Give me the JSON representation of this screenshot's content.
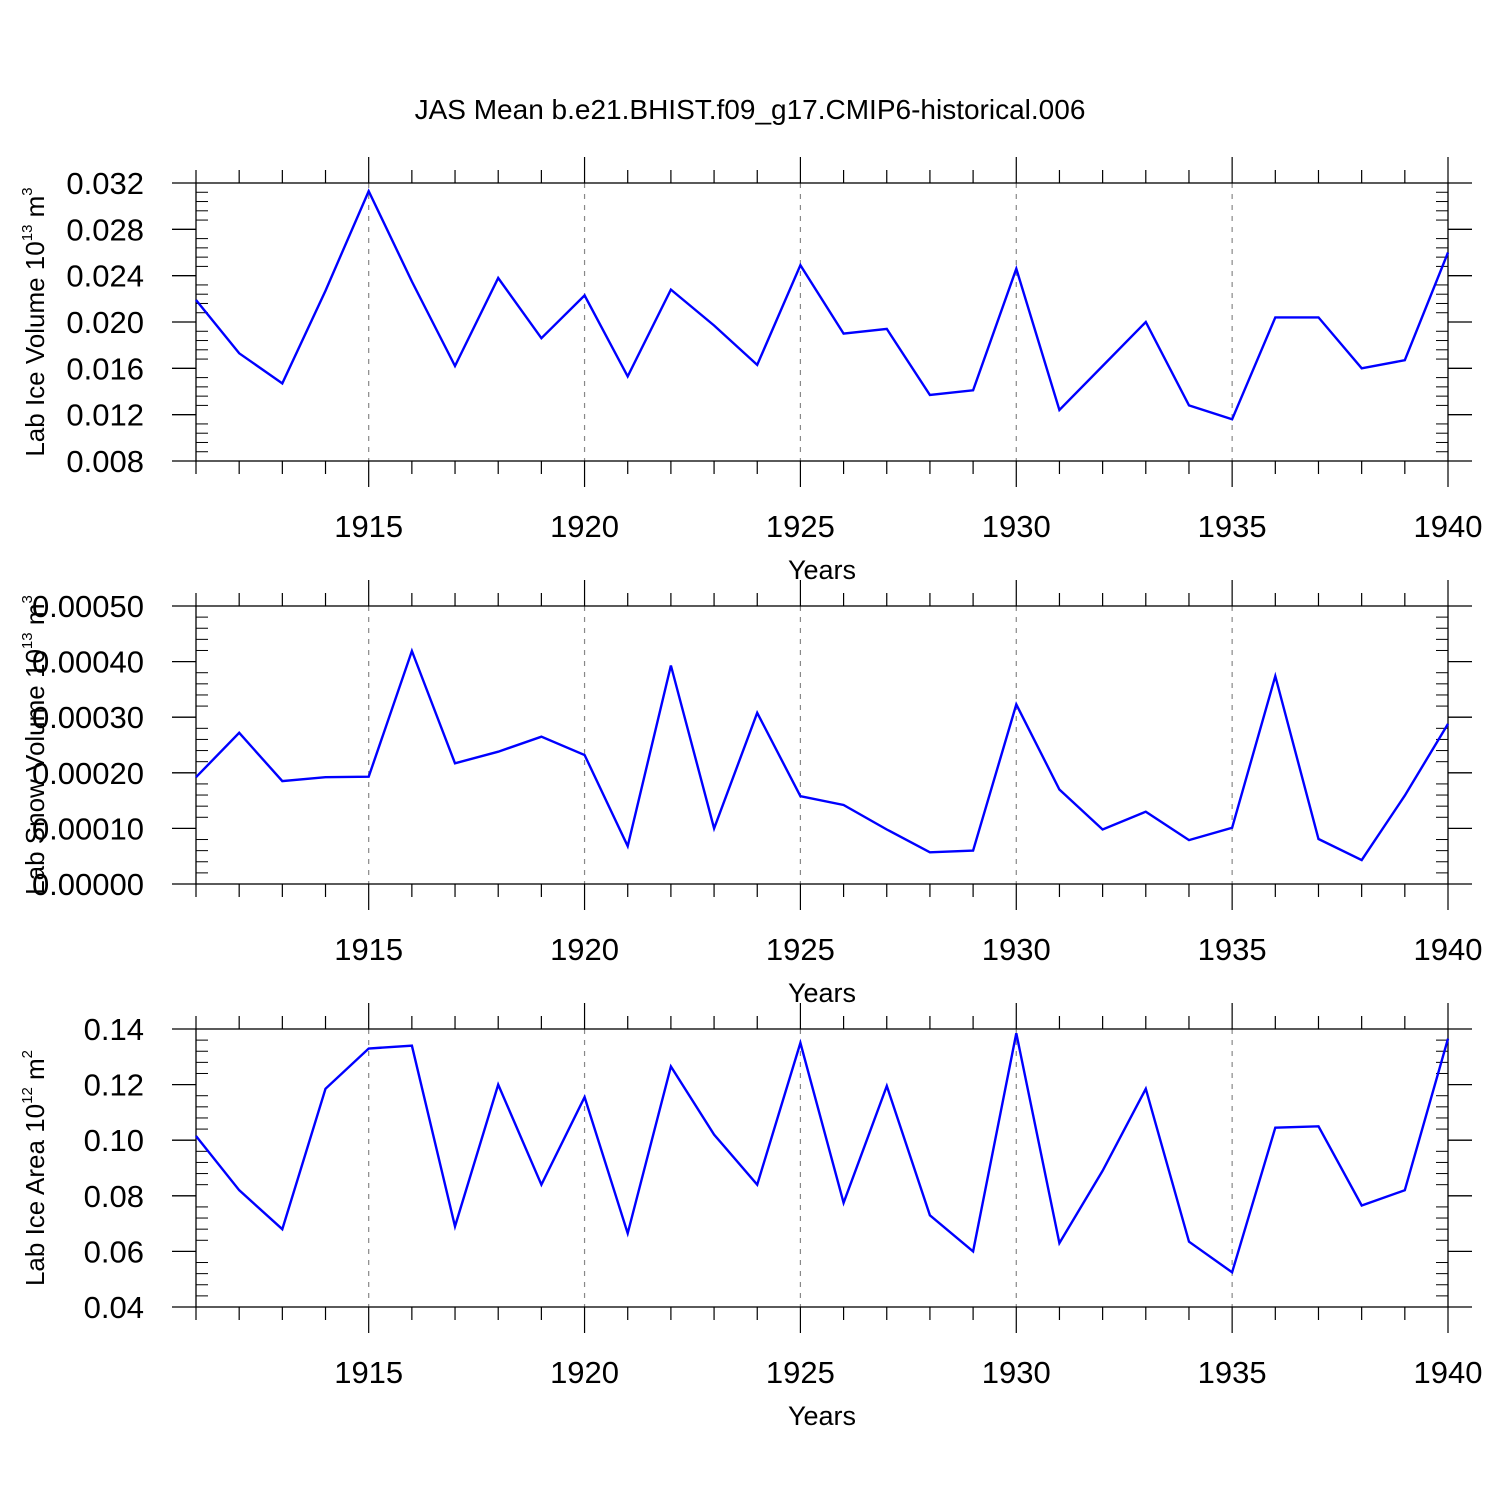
{
  "title": "JAS Mean b.e21.BHIST.f09_g17.CMIP6-historical.006",
  "chart_data": [
    {
      "type": "line",
      "ylabel": "Lab Ice Volume 10",
      "ylabel_exp": "13",
      "ylabel_unit": " m",
      "ylabel_unit_exp": "3",
      "xlabel": "Years",
      "xlim": [
        1911,
        1940
      ],
      "ylim": [
        0.008,
        0.032
      ],
      "yticks": [
        0.008,
        0.012,
        0.016,
        0.02,
        0.024,
        0.028,
        0.032
      ],
      "ytick_labels": [
        "0.008",
        "0.012",
        "0.016",
        "0.020",
        "0.024",
        "0.028",
        "0.032"
      ],
      "xticks": [
        1915,
        1920,
        1925,
        1930,
        1935,
        1940
      ],
      "xtick_labels": [
        "1915",
        "1920",
        "1925",
        "1930",
        "1935",
        "1940"
      ],
      "grid_x": [
        1915,
        1920,
        1925,
        1930,
        1935
      ],
      "line_color": "#0000ff",
      "x": [
        1911,
        1912,
        1913,
        1914,
        1915,
        1916,
        1917,
        1918,
        1919,
        1920,
        1921,
        1922,
        1923,
        1924,
        1925,
        1926,
        1927,
        1928,
        1929,
        1930,
        1931,
        1932,
        1933,
        1934,
        1935,
        1936,
        1937,
        1938,
        1939,
        1940
      ],
      "values": [
        0.0219,
        0.0173,
        0.0147,
        0.0227,
        0.0313,
        0.0235,
        0.0162,
        0.0238,
        0.0186,
        0.0223,
        0.0153,
        0.0228,
        0.0197,
        0.0163,
        0.0249,
        0.019,
        0.0194,
        0.0137,
        0.0141,
        0.0246,
        0.0124,
        0.0162,
        0.02,
        0.0128,
        0.0116,
        0.0204,
        0.0204,
        0.016,
        0.0167,
        0.026
      ]
    },
    {
      "type": "line",
      "ylabel": "Lab Snow Volume 10",
      "ylabel_exp": "13",
      "ylabel_unit": " m",
      "ylabel_unit_exp": "3",
      "xlabel": "Years",
      "xlim": [
        1911,
        1940
      ],
      "ylim": [
        0.0,
        0.0005
      ],
      "yticks": [
        0.0,
        0.0001,
        0.0002,
        0.0003,
        0.0004,
        0.0005
      ],
      "ytick_labels": [
        "0.00000",
        "0.00010",
        "0.00020",
        "0.00030",
        "0.00040",
        "0.00050"
      ],
      "xticks": [
        1915,
        1920,
        1925,
        1930,
        1935,
        1940
      ],
      "xtick_labels": [
        "1915",
        "1920",
        "1925",
        "1930",
        "1935",
        "1940"
      ],
      "grid_x": [
        1915,
        1920,
        1925,
        1930,
        1935
      ],
      "line_color": "#0000ff",
      "x": [
        1911,
        1912,
        1913,
        1914,
        1915,
        1916,
        1917,
        1918,
        1919,
        1920,
        1921,
        1922,
        1923,
        1924,
        1925,
        1926,
        1927,
        1928,
        1929,
        1930,
        1931,
        1932,
        1933,
        1934,
        1935,
        1936,
        1937,
        1938,
        1939,
        1940
      ],
      "values": [
        0.000192,
        0.000272,
        0.000185,
        0.000192,
        0.000193,
        0.000419,
        0.000217,
        0.000238,
        0.000265,
        0.000232,
        6.8e-05,
        0.000393,
        0.0001,
        0.000308,
        0.000158,
        0.000142,
        9.8e-05,
        5.7e-05,
        6e-05,
        0.000323,
        0.00017,
        9.8e-05,
        0.00013,
        7.9e-05,
        0.000101,
        0.000374,
        8.1e-05,
        4.3e-05,
        0.000159,
        0.000288
      ]
    },
    {
      "type": "line",
      "ylabel": "Lab Ice Area 10",
      "ylabel_exp": "12",
      "ylabel_unit": " m",
      "ylabel_unit_exp": "2",
      "xlabel": "Years",
      "xlim": [
        1911,
        1940
      ],
      "ylim": [
        0.04,
        0.14
      ],
      "yticks": [
        0.04,
        0.06,
        0.08,
        0.1,
        0.12,
        0.14
      ],
      "ytick_labels": [
        "0.04",
        "0.06",
        "0.08",
        "0.10",
        "0.12",
        "0.14"
      ],
      "xticks": [
        1915,
        1920,
        1925,
        1930,
        1935,
        1940
      ],
      "xtick_labels": [
        "1915",
        "1920",
        "1925",
        "1930",
        "1935",
        "1940"
      ],
      "grid_x": [
        1915,
        1920,
        1925,
        1930,
        1935
      ],
      "line_color": "#0000ff",
      "x": [
        1911,
        1912,
        1913,
        1914,
        1915,
        1916,
        1917,
        1918,
        1919,
        1920,
        1921,
        1922,
        1923,
        1924,
        1925,
        1926,
        1927,
        1928,
        1929,
        1930,
        1931,
        1932,
        1933,
        1934,
        1935,
        1936,
        1937,
        1938,
        1939,
        1940
      ],
      "values": [
        0.1015,
        0.082,
        0.068,
        0.1185,
        0.133,
        0.134,
        0.069,
        0.12,
        0.084,
        0.1155,
        0.0665,
        0.1265,
        0.102,
        0.084,
        0.135,
        0.0775,
        0.1195,
        0.073,
        0.06,
        0.1385,
        0.063,
        0.089,
        0.1185,
        0.0635,
        0.0525,
        0.1045,
        0.105,
        0.0765,
        0.082,
        0.1365
      ]
    }
  ]
}
